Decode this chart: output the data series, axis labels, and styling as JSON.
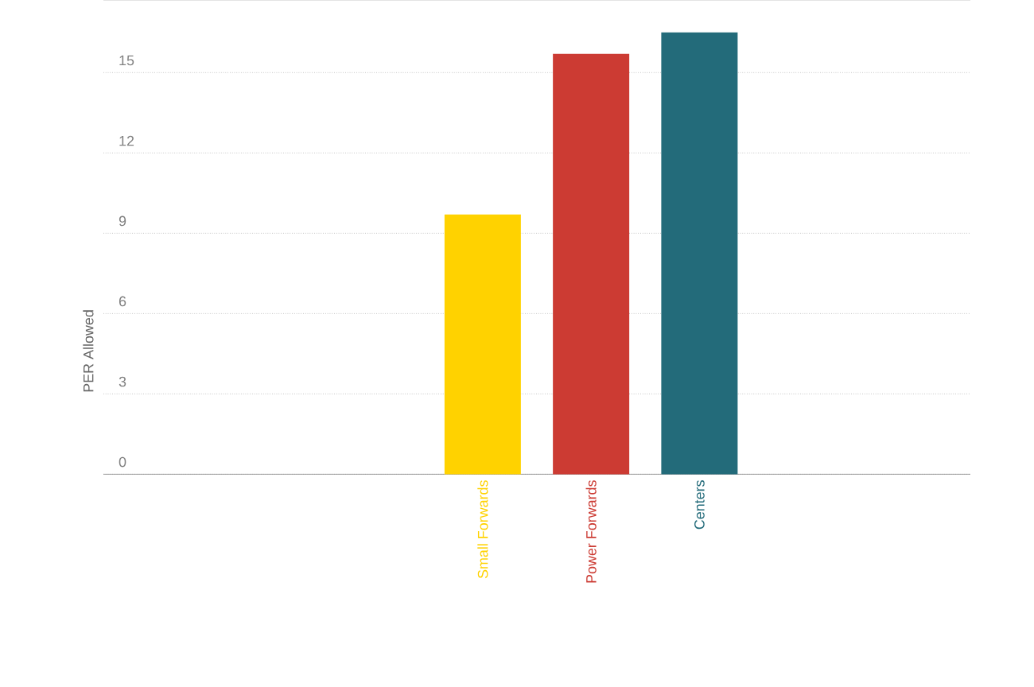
{
  "chart_data": {
    "type": "bar",
    "ylabel": "PER Allowed",
    "categories": [
      null,
      null,
      null,
      "Small Forwards",
      "Power Forwards",
      "Centers",
      null,
      null
    ],
    "values": [
      null,
      null,
      null,
      9.7,
      15.7,
      16.5,
      null,
      null
    ],
    "colors": [
      null,
      null,
      null,
      "#ffd200",
      "#cc3b33",
      "#236b7a",
      null,
      null
    ],
    "ylim": [
      0,
      17.7
    ],
    "yticks": [
      0,
      3,
      6,
      9,
      12,
      15
    ],
    "grid": "y"
  }
}
